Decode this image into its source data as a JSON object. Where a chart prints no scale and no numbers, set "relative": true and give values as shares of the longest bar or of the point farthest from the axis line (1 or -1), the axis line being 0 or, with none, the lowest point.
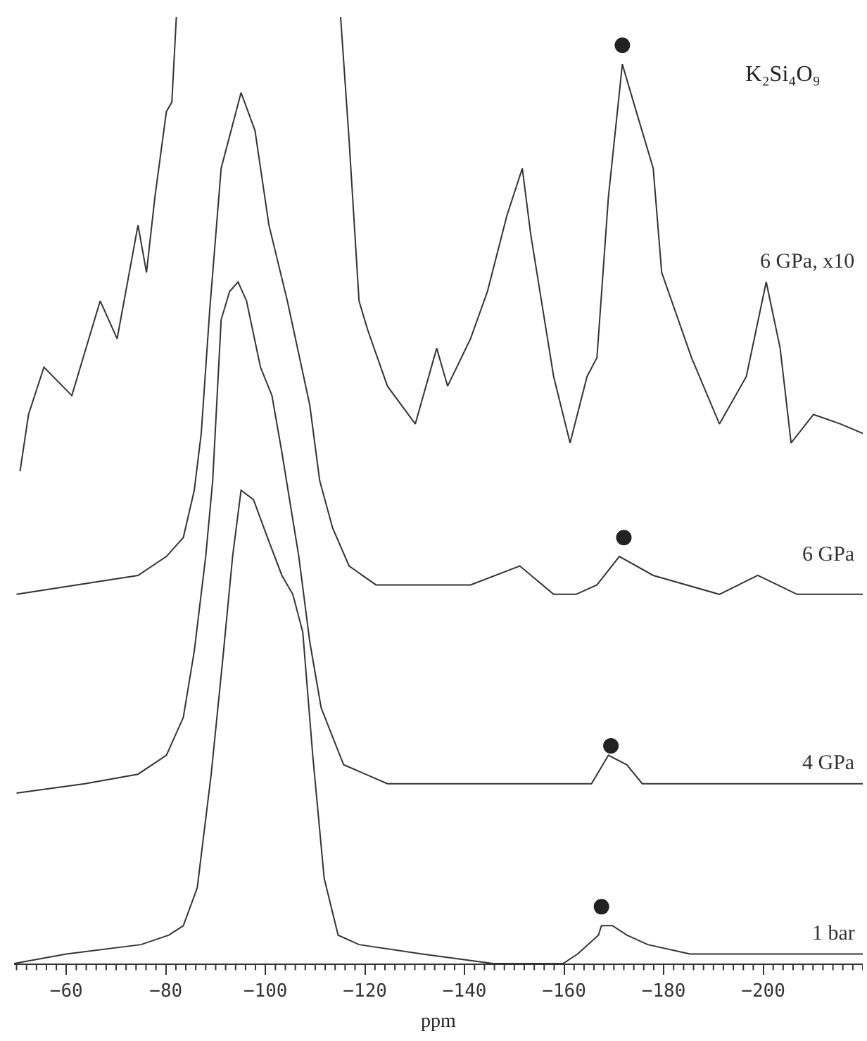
{
  "chart_data": {
    "type": "line",
    "title": "K₂Si₄O₉",
    "xlabel": "ppm",
    "relative": true,
    "grid": false,
    "legend": false,
    "line_style": "solid",
    "marker": "none",
    "xlim": [
      -49.5,
      -220
    ],
    "xticks": [
      {
        "value": -50,
        "label": null
      },
      {
        "value": -52,
        "label": null
      },
      {
        "value": -54,
        "label": null
      },
      {
        "value": -56,
        "label": null
      },
      {
        "value": -58,
        "label": null
      },
      -60,
      {
        "value": -62,
        "label": null
      },
      {
        "value": -64,
        "label": null
      },
      {
        "value": -66,
        "label": null
      },
      {
        "value": -68,
        "label": null
      },
      {
        "value": -70,
        "label": null
      },
      {
        "value": -72,
        "label": null
      },
      {
        "value": -74,
        "label": null
      },
      {
        "value": -76,
        "label": null
      },
      {
        "value": -78,
        "label": null
      },
      -80,
      {
        "value": -82,
        "label": null
      },
      {
        "value": -84,
        "label": null
      },
      {
        "value": -86,
        "label": null
      },
      {
        "value": -88,
        "label": null
      },
      {
        "value": -90,
        "label": null
      },
      {
        "value": -92,
        "label": null
      },
      {
        "value": -94,
        "label": null
      },
      {
        "value": -96,
        "label": null
      },
      {
        "value": -98,
        "label": null
      },
      -100,
      {
        "value": -102,
        "label": null
      },
      {
        "value": -104,
        "label": null
      },
      {
        "value": -106,
        "label": null
      },
      {
        "value": -108,
        "label": null
      },
      {
        "value": -110,
        "label": null
      },
      {
        "value": -112,
        "label": null
      },
      {
        "value": -114,
        "label": null
      },
      {
        "value": -116,
        "label": null
      },
      {
        "value": -118,
        "label": null
      },
      -120,
      {
        "value": -122,
        "label": null
      },
      {
        "value": -124,
        "label": null
      },
      {
        "value": -126,
        "label": null
      },
      {
        "value": -128,
        "label": null
      },
      {
        "value": -130,
        "label": null
      },
      {
        "value": -132,
        "label": null
      },
      {
        "value": -134,
        "label": null
      },
      {
        "value": -136,
        "label": null
      },
      {
        "value": -138,
        "label": null
      },
      -140,
      {
        "value": -142,
        "label": null
      },
      {
        "value": -144,
        "label": null
      },
      {
        "value": -146,
        "label": null
      },
      {
        "value": -148,
        "label": null
      },
      {
        "value": -150,
        "label": null
      },
      {
        "value": -152,
        "label": null
      },
      {
        "value": -154,
        "label": null
      },
      {
        "value": -156,
        "label": null
      },
      {
        "value": -158,
        "label": null
      },
      -160,
      {
        "value": -162,
        "label": null
      },
      {
        "value": -164,
        "label": null
      },
      {
        "value": -166,
        "label": null
      },
      {
        "value": -168,
        "label": null
      },
      {
        "value": -170,
        "label": null
      },
      {
        "value": -172,
        "label": null
      },
      {
        "value": -174,
        "label": null
      },
      {
        "value": -176,
        "label": null
      },
      {
        "value": -178,
        "label": null
      },
      -180,
      {
        "value": -182,
        "label": null
      },
      {
        "value": -184,
        "label": null
      },
      {
        "value": -186,
        "label": null
      },
      {
        "value": -188,
        "label": null
      },
      {
        "value": -190,
        "label": null
      },
      {
        "value": -192,
        "label": null
      },
      {
        "value": -194,
        "label": null
      },
      {
        "value": -196,
        "label": null
      },
      {
        "value": -198,
        "label": null
      },
      -200,
      {
        "value": -202,
        "label": null
      },
      {
        "value": -204,
        "label": null
      },
      {
        "value": -206,
        "label": null
      },
      {
        "value": -208,
        "label": null
      },
      {
        "value": -210,
        "label": null
      },
      {
        "value": -212,
        "label": null
      },
      {
        "value": -214,
        "label": null
      },
      {
        "value": -216,
        "label": null
      },
      {
        "value": -218,
        "label": null
      },
      {
        "value": -220,
        "label": null
      }
    ],
    "series": [
      {
        "name": "6 GPa, x10",
        "color": "#333333",
        "x": [
          -50.7,
          -52.4,
          -55.5,
          -61.1,
          -66.8,
          -70.2,
          -74.4,
          -76.1,
          -77.8,
          -80.1,
          -81.2,
          -82.1,
          -97.6,
          -115.1,
          -116.8,
          -118.8,
          -120.5,
          -124.5,
          -130.1,
          -134.4,
          -136.6,
          -141.2,
          -144.6,
          -148.5,
          -151.6,
          -153.3,
          -157.9,
          -161.2,
          -164.6,
          -166.6,
          -168.9,
          -171.7,
          -174.5,
          -177.9,
          -179.6,
          -185.6,
          -191.2,
          -196.6,
          -200.6,
          -203.4,
          -205.6,
          -210.1,
          -215.5,
          -220
        ],
        "values": [
          0.52,
          0.58,
          0.63,
          0.6,
          0.7,
          0.66,
          0.78,
          0.73,
          0.81,
          0.9,
          0.91,
          1,
          null,
          1,
          0.87,
          0.7,
          0.67,
          0.61,
          0.57,
          0.65,
          0.61,
          0.66,
          0.71,
          0.79,
          0.84,
          0.77,
          0.62,
          0.55,
          0.62,
          0.64,
          0.81,
          0.95,
          0.9,
          0.84,
          0.73,
          0.64,
          0.57,
          0.62,
          0.72,
          0.65,
          0.55,
          0.58,
          0.57,
          0.56
        ]
      },
      {
        "name": "6 GPa",
        "color": "#333333",
        "x": [
          -50,
          -74.4,
          -80.1,
          -83.5,
          -85.7,
          -87.1,
          -88.8,
          -91.1,
          -95.1,
          -97.9,
          -100.7,
          -104.4,
          -108.9,
          -110.9,
          -113.5,
          -116.8,
          -122.2,
          -141.2,
          -151.1,
          -157.9,
          -162.4,
          -166.6,
          -171.1,
          -177.9,
          -191.2,
          -198.9,
          -206.8,
          -220
        ],
        "values": [
          0.39,
          0.41,
          0.43,
          0.45,
          0.5,
          0.56,
          0.69,
          0.84,
          0.92,
          0.88,
          0.78,
          0.7,
          0.59,
          0.51,
          0.46,
          0.42,
          0.4,
          0.4,
          0.42,
          0.39,
          0.39,
          0.4,
          0.43,
          0.41,
          0.39,
          0.41,
          0.39,
          0.39
        ]
      },
      {
        "name": "4 GPa",
        "color": "#333333",
        "x": [
          -50,
          -63.7,
          -74.4,
          -80.1,
          -83.5,
          -85.7,
          -88,
          -89.4,
          -91.1,
          -92.8,
          -94.5,
          -96.2,
          -99,
          -101.3,
          -103.3,
          -106.7,
          -108.9,
          -111.2,
          -115.7,
          -124.5,
          -137.2,
          -148.8,
          -160.1,
          -165.5,
          -168.9,
          -172.6,
          -175.7,
          -185.6,
          -202.3,
          -220
        ],
        "values": [
          0.18,
          0.19,
          0.2,
          0.22,
          0.26,
          0.33,
          0.43,
          0.51,
          0.68,
          0.71,
          0.72,
          0.7,
          0.63,
          0.6,
          0.54,
          0.43,
          0.34,
          0.27,
          0.21,
          0.19,
          0.19,
          0.19,
          0.19,
          0.19,
          0.22,
          0.21,
          0.19,
          0.19,
          0.19,
          0.19
        ]
      },
      {
        "name": "1 bar",
        "color": "#333333",
        "x": [
          -49.5,
          -60,
          -75,
          -80.6,
          -83.5,
          -86.3,
          -89.1,
          -91.4,
          -93.4,
          -95.1,
          -97.6,
          -100.4,
          -103.3,
          -105.5,
          -107.5,
          -109.5,
          -111.8,
          -114.6,
          -118.8,
          -131.5,
          -145.7,
          -159.8,
          -162.7,
          -166.9,
          -167.5,
          -169.7,
          -172.6,
          -176.8,
          -185.3,
          -193.8,
          -220
        ],
        "values": [
          0,
          0.01,
          0.02,
          0.03,
          0.04,
          0.08,
          0.2,
          0.32,
          0.43,
          0.5,
          0.49,
          0.45,
          0.41,
          0.39,
          0.35,
          0.22,
          0.09,
          0.03,
          0.02,
          0.01,
          0,
          0,
          0.01,
          0.03,
          0.04,
          0.04,
          0.03,
          0.02,
          0.01,
          0.01,
          0.01
        ]
      },
      {
        "type": "scatter",
        "marker": "circle",
        "color": "#222222",
        "x": [
          -171.7,
          -172,
          -169.4,
          -167.5
        ],
        "values": [
          0.97,
          0.45,
          0.23,
          0.06
        ]
      }
    ]
  }
}
